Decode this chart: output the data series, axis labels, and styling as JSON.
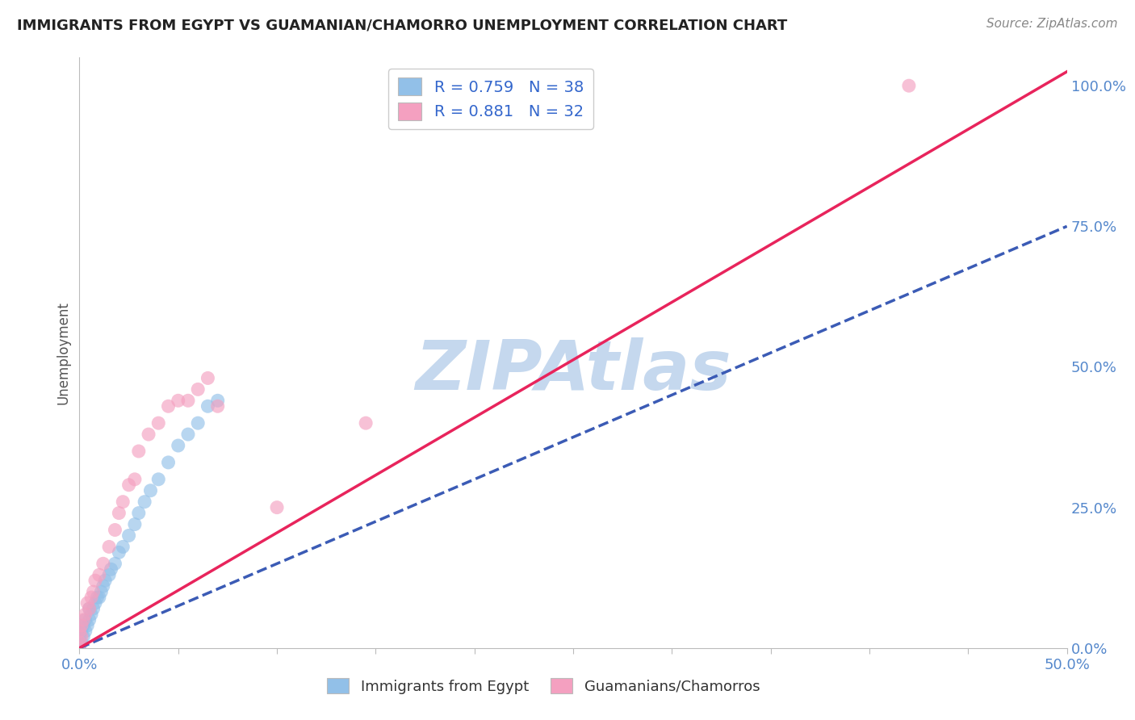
{
  "title": "IMMIGRANTS FROM EGYPT VS GUAMANIAN/CHAMORRO UNEMPLOYMENT CORRELATION CHART",
  "source": "Source: ZipAtlas.com",
  "ylabel": "Unemployment",
  "xlim": [
    0.0,
    0.5
  ],
  "ylim": [
    0.0,
    1.05
  ],
  "xtick_positions": [
    0.0,
    0.05,
    0.1,
    0.15,
    0.2,
    0.25,
    0.3,
    0.35,
    0.4,
    0.45,
    0.5
  ],
  "xtick_labels": [
    "0.0%",
    "",
    "",
    "",
    "",
    "",
    "",
    "",
    "",
    "",
    "50.0%"
  ],
  "ytick_right": [
    0.0,
    0.25,
    0.5,
    0.75,
    1.0
  ],
  "ytick_right_labels": [
    "0.0%",
    "25.0%",
    "50.0%",
    "75.0%",
    "100.0%"
  ],
  "blue_scatter_color": "#92C0E8",
  "pink_scatter_color": "#F4A0C0",
  "blue_line_color": "#3B5BB5",
  "pink_line_color": "#E8245C",
  "blue_line_slope": 1.5,
  "blue_line_intercept": 0.0,
  "pink_line_slope": 2.05,
  "pink_line_intercept": 0.0,
  "blue_scatter_x": [
    0.0,
    0.0,
    0.0,
    0.0,
    0.001,
    0.001,
    0.002,
    0.002,
    0.003,
    0.003,
    0.004,
    0.005,
    0.005,
    0.006,
    0.007,
    0.008,
    0.009,
    0.01,
    0.011,
    0.012,
    0.013,
    0.015,
    0.016,
    0.018,
    0.02,
    0.022,
    0.025,
    0.028,
    0.03,
    0.033,
    0.036,
    0.04,
    0.045,
    0.05,
    0.055,
    0.06,
    0.065,
    0.07
  ],
  "blue_scatter_y": [
    0.0,
    0.01,
    0.02,
    0.03,
    0.01,
    0.03,
    0.02,
    0.04,
    0.03,
    0.05,
    0.04,
    0.05,
    0.07,
    0.06,
    0.07,
    0.08,
    0.09,
    0.09,
    0.1,
    0.11,
    0.12,
    0.13,
    0.14,
    0.15,
    0.17,
    0.18,
    0.2,
    0.22,
    0.24,
    0.26,
    0.28,
    0.3,
    0.33,
    0.36,
    0.38,
    0.4,
    0.43,
    0.44
  ],
  "pink_scatter_x": [
    0.0,
    0.0,
    0.0,
    0.001,
    0.001,
    0.002,
    0.003,
    0.004,
    0.005,
    0.006,
    0.007,
    0.008,
    0.01,
    0.012,
    0.015,
    0.018,
    0.02,
    0.022,
    0.025,
    0.028,
    0.03,
    0.035,
    0.04,
    0.045,
    0.05,
    0.055,
    0.06,
    0.065,
    0.07,
    0.1,
    0.145,
    0.42
  ],
  "pink_scatter_y": [
    0.0,
    0.01,
    0.03,
    0.02,
    0.04,
    0.05,
    0.06,
    0.08,
    0.07,
    0.09,
    0.1,
    0.12,
    0.13,
    0.15,
    0.18,
    0.21,
    0.24,
    0.26,
    0.29,
    0.3,
    0.35,
    0.38,
    0.4,
    0.43,
    0.44,
    0.44,
    0.46,
    0.48,
    0.43,
    0.25,
    0.4,
    1.0
  ],
  "legend_R_blue": "R = 0.759",
  "legend_N_blue": "N = 38",
  "legend_R_pink": "R = 0.881",
  "legend_N_pink": "N = 32",
  "legend_label_blue": "Immigrants from Egypt",
  "legend_label_pink": "Guamanians/Chamorros",
  "watermark": "ZIPAtlas",
  "watermark_color": "#C5D8EE",
  "grid_color": "#CCCCCC",
  "title_color": "#222222",
  "source_color": "#888888",
  "axis_tick_color": "#5588CC",
  "legend_text_color": "#3366CC"
}
